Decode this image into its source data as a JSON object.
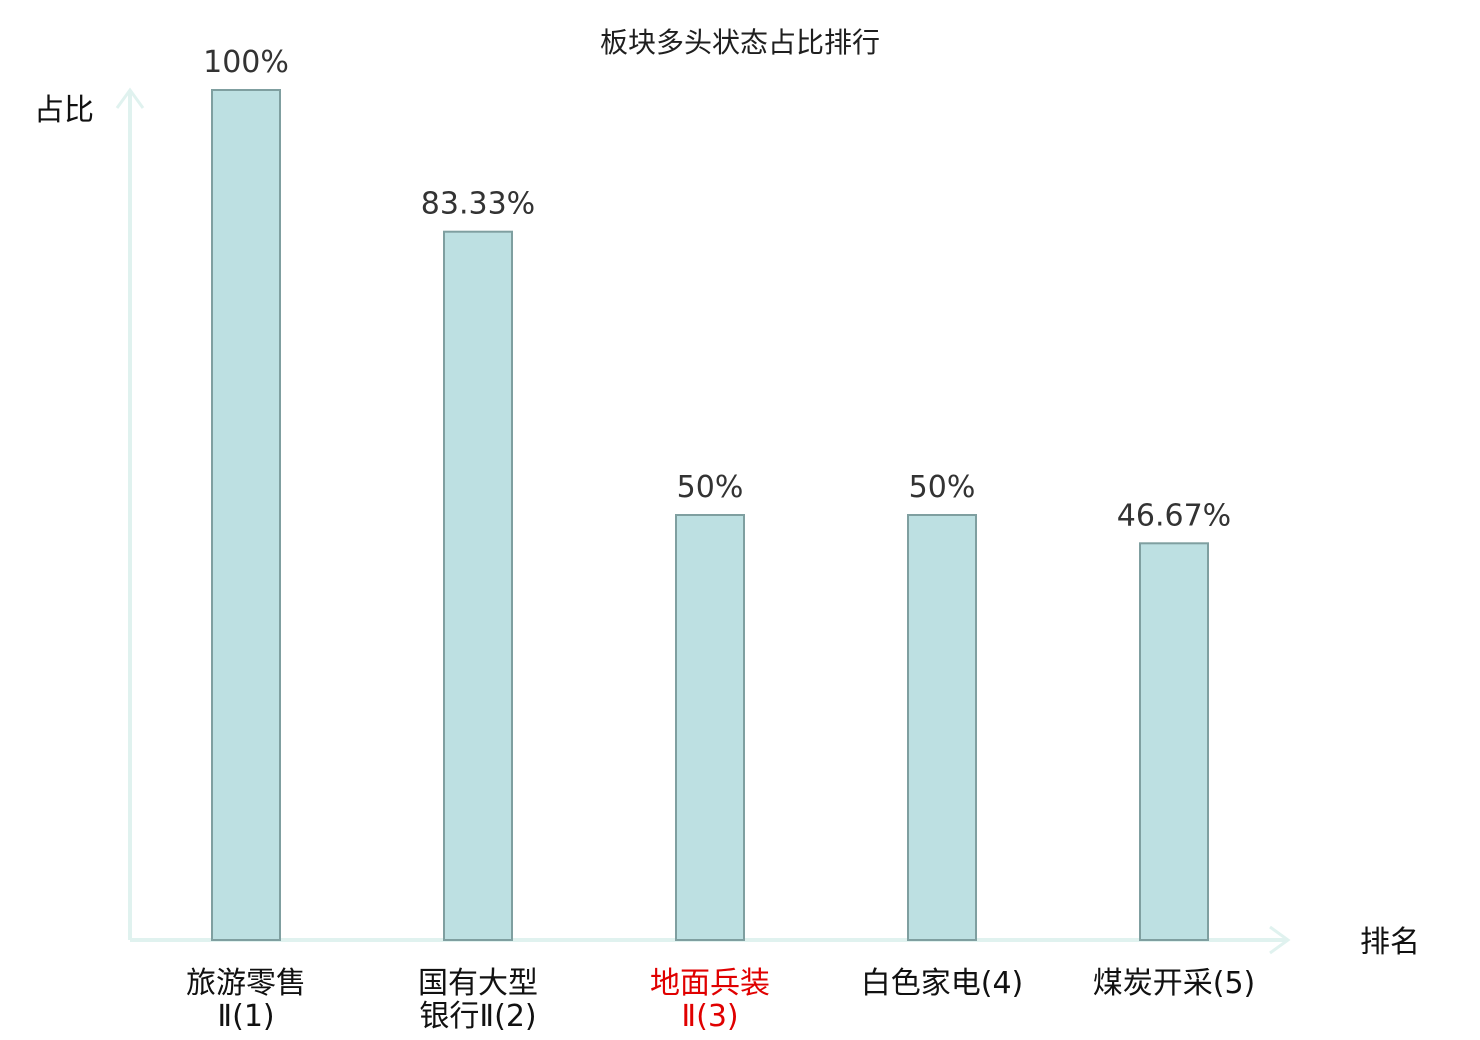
{
  "chart_data": {
    "type": "bar",
    "title": "板块多头状态占比排行",
    "ylabel": "占比",
    "xlabel": "排名",
    "ylim": [
      0,
      100
    ],
    "grid": false,
    "legend": "none",
    "categories": [
      [
        "旅游零售",
        "Ⅱ(1)"
      ],
      [
        "国有大型",
        "银行Ⅱ(2)"
      ],
      [
        "地面兵装",
        "Ⅱ(3)"
      ],
      [
        "白色家电(4)"
      ],
      [
        "煤炭开采(5)"
      ]
    ],
    "values": [
      100,
      83.33,
      50,
      50,
      46.67
    ],
    "value_labels": [
      "100%",
      "83.33%",
      "50%",
      "50%",
      "46.67%"
    ],
    "highlight_index": 2
  },
  "colors": {
    "bar_fill": "#bde0e2",
    "bar_stroke": "#7f9fa0",
    "axis": "#e0f2ef",
    "highlight_text": "#e00000",
    "normal_text": "#111111"
  }
}
